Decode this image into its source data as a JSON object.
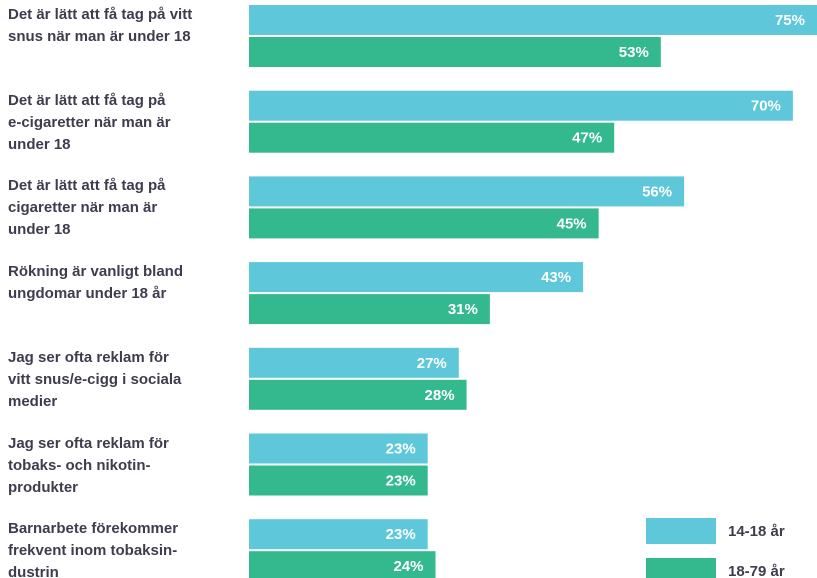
{
  "chart_data": {
    "type": "barh",
    "categories": [
      "Det är lätt att få tag på vitt\nsnus när man är under 18",
      "Det är lätt att få tag på\ne-cigaretter när man är\nunder 18",
      "Det är lätt att få tag på\ncigaretter när man är\nunder 18",
      "Rökning är vanligt bland\nungdomar under 18 år",
      "Jag ser ofta reklam för\nvitt snus/e-cigg i sociala\nmedier",
      "Jag ser ofta reklam för\ntobaks- och nikotin-\nprodukter",
      "Barnarbete förekommer\nfrekvent inom tobaksin-\ndustrin"
    ],
    "series": [
      {
        "name": "14-18 år",
        "color": "#5ec8da",
        "values": [
          75,
          70,
          56,
          43,
          27,
          23,
          23
        ],
        "value_labels": [
          "75%",
          "70%",
          "56%",
          "43%",
          "27%",
          "23%",
          "23%"
        ]
      },
      {
        "name": "18-79 år",
        "color": "#34b98f",
        "values": [
          53,
          47,
          45,
          31,
          28,
          23,
          24
        ],
        "value_labels": [
          "53%",
          "47%",
          "45%",
          "31%",
          "28%",
          "23%",
          "24%"
        ]
      }
    ],
    "xlim": [
      0,
      100
    ],
    "legend": "lower right"
  }
}
